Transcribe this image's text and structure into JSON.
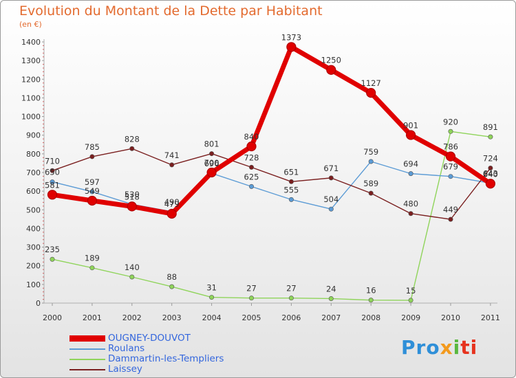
{
  "chart_data": {
    "type": "line",
    "title": "Evolution du Montant de la Dette par Habitant",
    "subtitle": "(en €)",
    "x": [
      "2000",
      "2001",
      "2002",
      "2003",
      "2004",
      "2005",
      "2006",
      "2007",
      "2008",
      "2009",
      "2010",
      "2011"
    ],
    "ylim": [
      0,
      1400
    ],
    "yticks": [
      0,
      100,
      200,
      300,
      400,
      500,
      600,
      700,
      800,
      900,
      1000,
      1100,
      1200,
      1300,
      1400
    ],
    "grid": false,
    "legend_position": "bottom-left",
    "series": [
      {
        "name": "OUGNEY-DOUVOT",
        "color": "#e00000",
        "values": [
          581,
          549,
          518,
          479,
          700,
          840,
          1373,
          1250,
          1127,
          901,
          786,
          640
        ]
      },
      {
        "name": "Roulans",
        "color": "#5b9bd5",
        "values": [
          650,
          597,
          530,
          490,
          696,
          625,
          555,
          504,
          759,
          694,
          679,
          643
        ]
      },
      {
        "name": "Dammartin-les-Templiers",
        "color": "#8fd45a",
        "values": [
          235,
          189,
          140,
          88,
          31,
          27,
          27,
          24,
          16,
          15,
          920,
          891
        ]
      },
      {
        "name": "Laissey",
        "color": "#7a1f1f",
        "values": [
          710,
          785,
          828,
          741,
          801,
          728,
          651,
          671,
          589,
          480,
          449,
          724
        ]
      }
    ]
  },
  "logo": {
    "p1": "Pro",
    "p2": "x",
    "p3": "i",
    "p4": "ti"
  }
}
